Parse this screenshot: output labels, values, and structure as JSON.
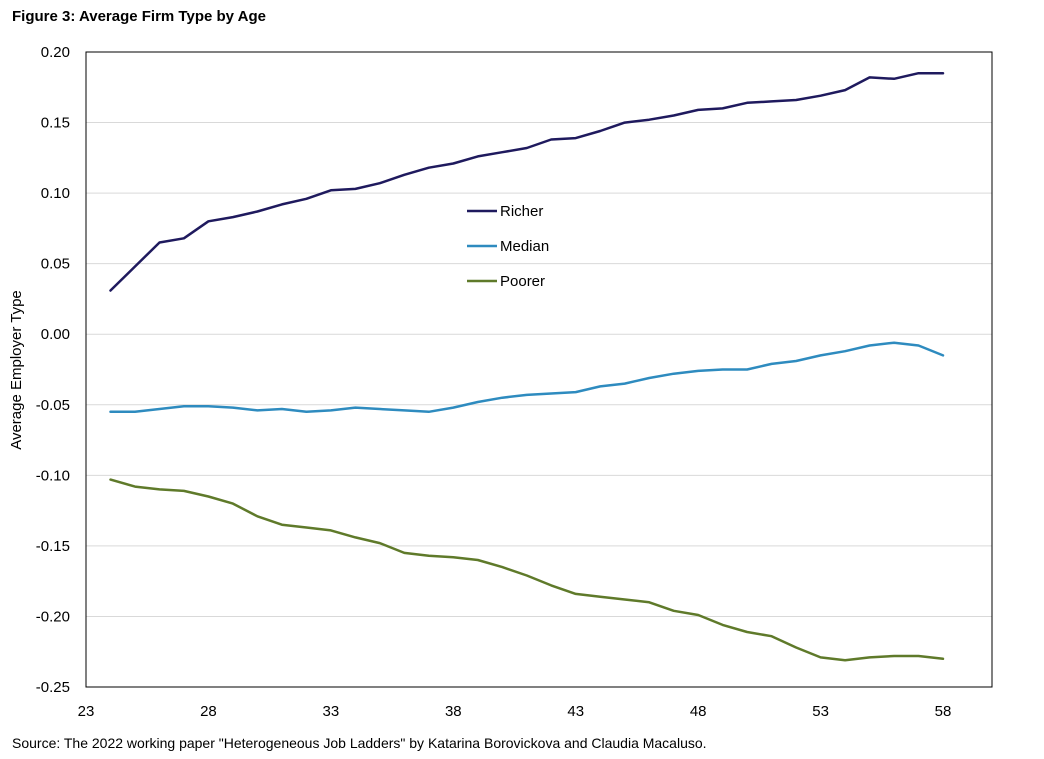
{
  "figure": {
    "title": "Figure 3: Average Firm Type by Age",
    "source": "Source: The 2022  working paper \"Heterogeneous Job Ladders\" by Katarina Borovickova and Claudia Macaluso."
  },
  "colors": {
    "richer": "#1f1a5e",
    "median": "#2e8bbf",
    "poorer": "#5f7a2a",
    "grid": "#d9d9d9",
    "axis": "#000000"
  },
  "chart_data": {
    "type": "line",
    "title": "Figure 3: Average Firm Type by Age",
    "xlabel": "",
    "ylabel": "Average Employer Type",
    "xlim": [
      23,
      60
    ],
    "ylim": [
      -0.25,
      0.2
    ],
    "xticks": [
      23,
      28,
      33,
      38,
      43,
      48,
      53,
      58
    ],
    "yticks": [
      0.2,
      0.15,
      0.1,
      0.05,
      0.0,
      -0.05,
      -0.1,
      -0.15,
      -0.2,
      -0.25
    ],
    "ytick_labels": [
      "0.20",
      "0.15",
      "0.10",
      "0.05",
      "0.00",
      "-0.05",
      "-0.10",
      "-0.15",
      "-0.20",
      "-0.25"
    ],
    "grid": true,
    "legend_position": "center",
    "x": [
      24,
      25,
      26,
      27,
      28,
      29,
      30,
      31,
      32,
      33,
      34,
      35,
      36,
      37,
      38,
      39,
      40,
      41,
      42,
      43,
      44,
      45,
      46,
      47,
      48,
      49,
      50,
      51,
      52,
      53,
      54,
      55,
      56,
      57,
      58
    ],
    "series": [
      {
        "name": "Richer",
        "key": "richer",
        "values": [
          0.031,
          0.048,
          0.065,
          0.068,
          0.08,
          0.083,
          0.087,
          0.092,
          0.096,
          0.102,
          0.103,
          0.107,
          0.113,
          0.118,
          0.121,
          0.126,
          0.129,
          0.132,
          0.138,
          0.139,
          0.144,
          0.15,
          0.152,
          0.155,
          0.159,
          0.16,
          0.164,
          0.165,
          0.166,
          0.169,
          0.173,
          0.182,
          0.181,
          0.185,
          0.185
        ]
      },
      {
        "name": "Median",
        "key": "median",
        "values": [
          -0.055,
          -0.055,
          -0.053,
          -0.051,
          -0.051,
          -0.052,
          -0.054,
          -0.053,
          -0.055,
          -0.054,
          -0.052,
          -0.053,
          -0.054,
          -0.055,
          -0.052,
          -0.048,
          -0.045,
          -0.043,
          -0.042,
          -0.041,
          -0.037,
          -0.035,
          -0.031,
          -0.028,
          -0.026,
          -0.025,
          -0.025,
          -0.021,
          -0.019,
          -0.015,
          -0.012,
          -0.008,
          -0.006,
          -0.008,
          -0.015
        ]
      },
      {
        "name": "Poorer",
        "key": "poorer",
        "values": [
          -0.103,
          -0.108,
          -0.11,
          -0.111,
          -0.115,
          -0.12,
          -0.129,
          -0.135,
          -0.137,
          -0.139,
          -0.144,
          -0.148,
          -0.155,
          -0.157,
          -0.158,
          -0.16,
          -0.165,
          -0.171,
          -0.178,
          -0.184,
          -0.186,
          -0.188,
          -0.19,
          -0.196,
          -0.199,
          -0.206,
          -0.211,
          -0.214,
          -0.222,
          -0.229,
          -0.231,
          -0.229,
          -0.228,
          -0.228,
          -0.23
        ]
      }
    ]
  }
}
